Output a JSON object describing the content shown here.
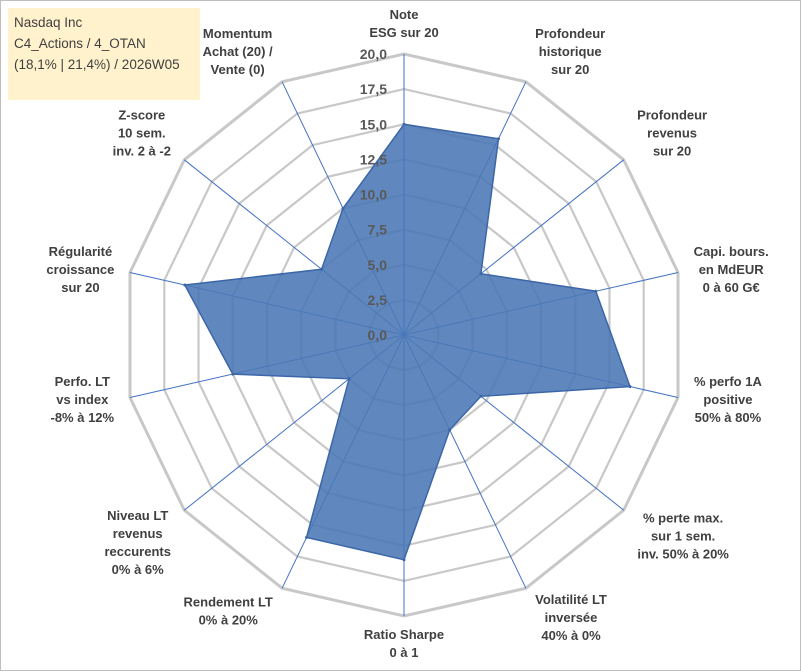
{
  "info_box": {
    "line1": "Nasdaq Inc",
    "line2": "C4_Actions / 4_OTAN",
    "line3": "(18,1% | 21,4%) / 2026W05"
  },
  "colors": {
    "fill": "#4a78b5",
    "stroke": "#3b66a8",
    "grid": "#c8c8c8",
    "spoke": "#4472c4",
    "info_bg": "#fff2cc"
  },
  "chart_data": {
    "type": "radar",
    "rmax": 20,
    "tick_values": [
      0,
      2.5,
      5,
      7.5,
      10,
      12.5,
      15,
      17.5,
      20
    ],
    "tick_labels": [
      "0,0",
      "2,5",
      "5,0",
      "7,5",
      "10,0",
      "12,5",
      "15,0",
      "17,5",
      "20,0"
    ],
    "axes": [
      {
        "label_lines": [
          "Note",
          "ESG sur 20"
        ],
        "value": 15
      },
      {
        "label_lines": [
          "Profondeur",
          "historique",
          "sur 20"
        ],
        "value": 15.5
      },
      {
        "label_lines": [
          "Profondeur",
          "revenus",
          "sur 20"
        ],
        "value": 7
      },
      {
        "label_lines": [
          "Capi. bours.",
          "en MdEUR",
          "0 à 60 G€"
        ],
        "value": 14
      },
      {
        "label_lines": [
          "% perfo 1A",
          "positive",
          "50% à 80%"
        ],
        "value": 16.5
      },
      {
        "label_lines": [
          "% perte max.",
          "sur 1 sem.",
          "inv. 50% à 20%"
        ],
        "value": 7
      },
      {
        "label_lines": [
          "Volatilité LT",
          "inversée",
          "40% à 0%"
        ],
        "value": 7.5
      },
      {
        "label_lines": [
          "Ratio Sharpe",
          "0 à 1"
        ],
        "value": 16
      },
      {
        "label_lines": [
          "Rendement LT",
          "0% à 20%"
        ],
        "value": 16
      },
      {
        "label_lines": [
          "Niveau LT",
          "revenus",
          "reccurents",
          "0% à 6%"
        ],
        "value": 5
      },
      {
        "label_lines": [
          "Perfo. LT",
          "vs index",
          "-8% à 12%"
        ],
        "value": 12.5
      },
      {
        "label_lines": [
          "Régularité",
          "croissance",
          "sur 20"
        ],
        "value": 16
      },
      {
        "label_lines": [
          "Z-score",
          "10 sem.",
          "inv. 2 à -2"
        ],
        "value": 7.5
      },
      {
        "label_lines": [
          "Momentum",
          "Achat (20) /",
          "Vente (0)"
        ],
        "value": 10
      }
    ]
  }
}
